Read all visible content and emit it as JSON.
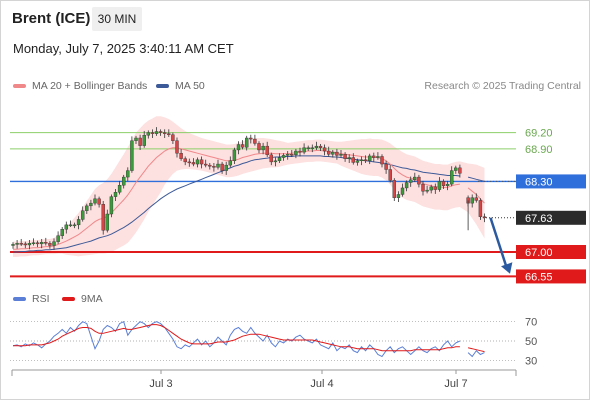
{
  "header": {
    "instrument": "Brent (ICE)",
    "timeframe": "30 MIN",
    "datetime": "Monday, July 7, 2025 3:40:11 AM CET"
  },
  "legend": {
    "ma20_bb": "MA 20 + Bollinger Bands",
    "ma50": "MA 50",
    "credit": "Research © 2025 Trading Central",
    "rsi": "RSI",
    "rsi_ma": "9MA"
  },
  "colors": {
    "bullish": "#3a9b3a",
    "bearish": "#d64545",
    "ma20": "#f0888a",
    "ma50": "#3d5a98",
    "band_fill": "#fde0e0",
    "resistance": "#8ccf6a",
    "pivot": "#2f6fdc",
    "support": "#e01a1a",
    "rsi": "#5b7fd6",
    "rsi_ma": "#e01a1a",
    "arrow": "#2c5aa0"
  },
  "chart_data": [
    {
      "type": "candlestick",
      "ylim": [
        66.3,
        69.8
      ],
      "x_ticks": [
        "Jul 3",
        "Jul 4",
        "Jul 7"
      ],
      "levels": [
        {
          "label": "69.20",
          "value": 69.2,
          "kind": "resistance"
        },
        {
          "label": "68.90",
          "value": 68.9,
          "kind": "resistance"
        },
        {
          "label": "68.30",
          "value": 68.3,
          "kind": "pivot"
        },
        {
          "label": "67.63",
          "value": 67.63,
          "kind": "last"
        },
        {
          "label": "67.00",
          "value": 67.0,
          "kind": "support"
        },
        {
          "label": "66.55",
          "value": 66.55,
          "kind": "support"
        }
      ],
      "close": [
        67.14,
        67.16,
        67.15,
        67.13,
        67.16,
        67.17,
        67.15,
        67.18,
        67.16,
        67.12,
        67.19,
        67.3,
        67.42,
        67.5,
        67.5,
        67.5,
        67.6,
        67.76,
        67.85,
        67.9,
        67.98,
        67.88,
        67.4,
        67.7,
        68.02,
        68.1,
        68.23,
        68.38,
        68.5,
        69.05,
        69.1,
        68.96,
        69.15,
        69.2,
        69.18,
        69.22,
        69.2,
        69.18,
        69.16,
        69.05,
        68.82,
        68.72,
        68.66,
        68.65,
        68.62,
        68.7,
        68.62,
        68.6,
        68.58,
        68.56,
        68.62,
        68.5,
        68.6,
        68.68,
        68.88,
        68.98,
        68.93,
        69.1,
        69.08,
        69.0,
        68.88,
        68.95,
        68.79,
        68.66,
        68.68,
        68.74,
        68.78,
        68.8,
        68.79,
        68.86,
        68.84,
        68.92,
        68.92,
        68.92,
        68.95,
        68.92,
        68.86,
        68.8,
        68.84,
        68.78,
        68.8,
        68.72,
        68.74,
        68.65,
        68.68,
        68.7,
        68.68,
        68.77,
        68.74,
        68.76,
        68.62,
        68.52,
        68.32,
        68.0,
        68.06,
        68.18,
        68.28,
        68.33,
        68.38,
        68.25,
        68.12,
        68.14,
        68.2,
        68.15,
        68.3,
        68.22,
        68.25,
        68.5,
        68.55,
        68.45,
        null,
        67.9,
        68.0,
        67.95,
        67.65,
        67.63
      ],
      "open": [
        67.12,
        67.14,
        67.16,
        67.15,
        67.13,
        67.16,
        67.17,
        67.15,
        67.18,
        67.16,
        67.12,
        67.19,
        67.3,
        67.42,
        67.5,
        67.5,
        67.5,
        67.6,
        67.76,
        67.85,
        67.9,
        67.98,
        67.88,
        67.4,
        67.7,
        68.02,
        68.1,
        68.23,
        68.38,
        68.5,
        69.05,
        69.1,
        68.96,
        69.15,
        69.2,
        69.18,
        69.22,
        69.2,
        69.18,
        69.16,
        69.05,
        68.82,
        68.72,
        68.66,
        68.65,
        68.62,
        68.7,
        68.62,
        68.6,
        68.58,
        68.56,
        68.62,
        68.5,
        68.6,
        68.68,
        68.88,
        68.98,
        68.93,
        69.1,
        69.08,
        69.0,
        68.88,
        68.95,
        68.79,
        68.66,
        68.68,
        68.74,
        68.78,
        68.8,
        68.79,
        68.86,
        68.84,
        68.92,
        68.92,
        68.92,
        68.95,
        68.92,
        68.86,
        68.8,
        68.84,
        68.78,
        68.8,
        68.72,
        68.74,
        68.65,
        68.68,
        68.7,
        68.68,
        68.77,
        68.74,
        68.76,
        68.62,
        68.52,
        68.32,
        68.0,
        68.06,
        68.18,
        68.28,
        68.33,
        68.38,
        68.25,
        68.12,
        68.14,
        68.2,
        68.15,
        68.3,
        68.22,
        68.25,
        68.5,
        68.55,
        null,
        68.0,
        67.9,
        68.0,
        67.95,
        67.65
      ],
      "ma20": [
        67.05,
        67.05,
        67.06,
        67.06,
        67.07,
        67.08,
        67.08,
        67.09,
        67.1,
        67.1,
        67.11,
        67.14,
        67.17,
        67.2,
        67.24,
        67.28,
        67.32,
        67.38,
        67.44,
        67.5,
        67.56,
        67.6,
        67.62,
        67.66,
        67.72,
        67.8,
        67.88,
        67.96,
        68.05,
        68.16,
        68.28,
        68.38,
        68.48,
        68.58,
        68.66,
        68.74,
        68.8,
        68.86,
        68.9,
        68.92,
        68.92,
        68.9,
        68.88,
        68.86,
        68.84,
        68.82,
        68.8,
        68.78,
        68.76,
        68.74,
        68.72,
        68.7,
        68.68,
        68.68,
        68.69,
        68.71,
        68.74,
        68.76,
        68.78,
        68.8,
        68.81,
        68.82,
        68.82,
        68.82,
        68.81,
        68.81,
        68.81,
        68.81,
        68.82,
        68.83,
        68.84,
        68.85,
        68.86,
        68.86,
        68.87,
        68.87,
        68.86,
        68.85,
        68.84,
        68.83,
        68.81,
        68.8,
        68.79,
        68.78,
        68.77,
        68.76,
        68.75,
        68.75,
        68.74,
        68.74,
        68.72,
        68.68,
        68.62,
        68.54,
        68.47,
        68.42,
        68.38,
        68.36,
        68.34,
        68.3,
        68.26,
        68.24,
        68.22,
        68.2,
        68.2,
        68.19,
        68.19,
        68.22,
        68.24,
        68.25,
        null,
        68.18,
        68.12,
        68.06,
        67.98,
        67.9
      ],
      "ma50": [
        67.0,
        67.0,
        67.01,
        67.01,
        67.02,
        67.02,
        67.03,
        67.03,
        67.04,
        67.04,
        67.05,
        67.06,
        67.07,
        67.08,
        67.1,
        67.12,
        67.14,
        67.16,
        67.18,
        67.2,
        67.23,
        67.26,
        67.28,
        67.3,
        67.33,
        67.37,
        67.41,
        67.45,
        67.5,
        67.55,
        67.61,
        67.67,
        67.73,
        67.8,
        67.86,
        67.92,
        67.98,
        68.03,
        68.08,
        68.12,
        68.16,
        68.19,
        68.22,
        68.25,
        68.28,
        68.31,
        68.34,
        68.37,
        68.4,
        68.43,
        68.46,
        68.49,
        68.52,
        68.55,
        68.58,
        68.6,
        68.63,
        68.65,
        68.68,
        68.7,
        68.71,
        68.72,
        68.73,
        68.74,
        68.75,
        68.75,
        68.76,
        68.76,
        68.76,
        68.77,
        68.77,
        68.77,
        68.77,
        68.77,
        68.77,
        68.77,
        68.76,
        68.76,
        68.75,
        68.75,
        68.74,
        68.73,
        68.72,
        68.71,
        68.7,
        68.69,
        68.68,
        68.67,
        68.66,
        68.65,
        68.64,
        68.63,
        68.61,
        68.59,
        68.57,
        68.55,
        68.54,
        68.52,
        68.51,
        68.49,
        68.47,
        68.46,
        68.45,
        68.44,
        68.43,
        68.42,
        68.41,
        68.41,
        68.41,
        68.4,
        null,
        68.38,
        68.36,
        68.34,
        68.32,
        68.3
      ],
      "band_width": [
        0.14,
        0.14,
        0.14,
        0.14,
        0.14,
        0.14,
        0.14,
        0.14,
        0.14,
        0.14,
        0.15,
        0.17,
        0.2,
        0.25,
        0.3,
        0.35,
        0.4,
        0.45,
        0.5,
        0.55,
        0.6,
        0.63,
        0.65,
        0.68,
        0.72,
        0.76,
        0.8,
        0.84,
        0.88,
        0.9,
        0.92,
        0.9,
        0.88,
        0.84,
        0.8,
        0.76,
        0.7,
        0.62,
        0.55,
        0.48,
        0.42,
        0.38,
        0.35,
        0.33,
        0.32,
        0.31,
        0.3,
        0.3,
        0.3,
        0.3,
        0.3,
        0.3,
        0.3,
        0.3,
        0.3,
        0.3,
        0.3,
        0.3,
        0.3,
        0.3,
        0.29,
        0.28,
        0.27,
        0.26,
        0.25,
        0.24,
        0.22,
        0.2,
        0.2,
        0.2,
        0.2,
        0.2,
        0.2,
        0.2,
        0.2,
        0.2,
        0.2,
        0.2,
        0.2,
        0.2,
        0.22,
        0.24,
        0.26,
        0.28,
        0.3,
        0.32,
        0.33,
        0.34,
        0.34,
        0.34,
        0.35,
        0.36,
        0.38,
        0.4,
        0.42,
        0.42,
        0.42,
        0.42,
        0.42,
        0.42,
        0.42,
        0.42,
        0.42,
        0.42,
        0.42,
        0.42,
        0.42,
        0.42,
        0.42,
        0.42,
        null,
        0.45,
        0.5,
        0.55,
        0.6,
        0.65
      ]
    },
    {
      "type": "line",
      "name": "RSI",
      "ylim": [
        20,
        80
      ],
      "y_ticks": [
        70,
        50,
        30
      ],
      "rsi": [
        45,
        46,
        44,
        47,
        45,
        48,
        46,
        43,
        47,
        50,
        55,
        58,
        62,
        58,
        64,
        60,
        66,
        70,
        68,
        55,
        42,
        50,
        62,
        66,
        64,
        60,
        68,
        70,
        56,
        62,
        66,
        70,
        68,
        64,
        68,
        70,
        68,
        64,
        58,
        52,
        44,
        42,
        46,
        44,
        48,
        52,
        46,
        50,
        44,
        48,
        54,
        50,
        46,
        56,
        62,
        64,
        60,
        58,
        64,
        58,
        54,
        50,
        56,
        48,
        44,
        50,
        48,
        52,
        50,
        54,
        56,
        52,
        50,
        48,
        52,
        46,
        44,
        42,
        48,
        40,
        44,
        42,
        46,
        40,
        38,
        44,
        40,
        46,
        42,
        36,
        34,
        40,
        44,
        38,
        42,
        44,
        40,
        36,
        40,
        44,
        40,
        38,
        42,
        44,
        40,
        46,
        50,
        44,
        48,
        50,
        null,
        38,
        34,
        40,
        36,
        38
      ],
      "rsi_ma": [
        45,
        45,
        45,
        45,
        46,
        46,
        46,
        46,
        47,
        48,
        50,
        52,
        55,
        57,
        59,
        61,
        63,
        64,
        64,
        63,
        60,
        58,
        58,
        59,
        60,
        61,
        62,
        63,
        62,
        62,
        63,
        64,
        65,
        66,
        67,
        67,
        66,
        64,
        61,
        58,
        55,
        52,
        50,
        48,
        47,
        47,
        47,
        47,
        47,
        48,
        49,
        49,
        49,
        50,
        51,
        53,
        55,
        56,
        57,
        57,
        57,
        56,
        55,
        54,
        53,
        52,
        51,
        51,
        51,
        51,
        51,
        51,
        51,
        51,
        50,
        49,
        48,
        47,
        46,
        45,
        44,
        44,
        44,
        43,
        42,
        42,
        42,
        42,
        42,
        41,
        40,
        40,
        40,
        40,
        40,
        40,
        40,
        40,
        41,
        41,
        41,
        41,
        41,
        41,
        41,
        42,
        43,
        43,
        44,
        44,
        null,
        43,
        42,
        41,
        40,
        39
      ]
    }
  ]
}
